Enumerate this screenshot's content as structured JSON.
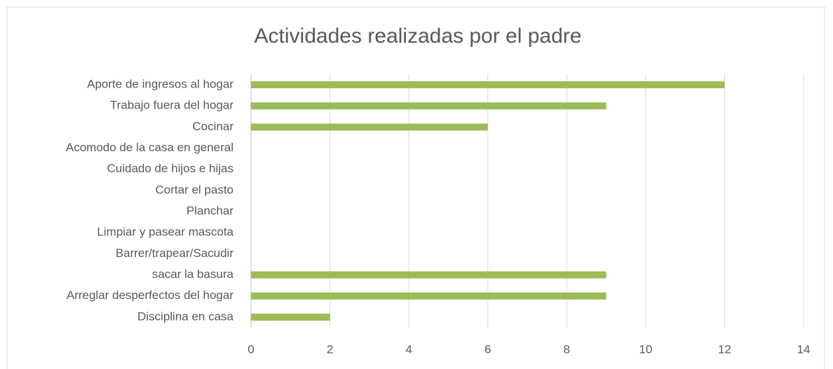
{
  "chart_data": {
    "type": "barh",
    "title": "Actividades realizadas por el padre",
    "categories": [
      "Aporte de ingresos al hogar",
      "Trabajo fuera del hogar",
      "Cocinar",
      "Acomodo de la casa en general",
      "Cuidado de hijos e hijas",
      "Cortar el pasto",
      "Planchar",
      "Limpiar y pasear mascota",
      "Barrer/trapear/Sacudir",
      "sacar la basura",
      "Arreglar desperfectos del hogar",
      "Disciplina en casa"
    ],
    "values": [
      12,
      9,
      6,
      0,
      0,
      0,
      0,
      0,
      0,
      9,
      9,
      2
    ],
    "color": "#9bbb59",
    "xlim": [
      0,
      14
    ],
    "xticks": [
      0,
      2,
      4,
      6,
      8,
      10,
      12,
      14
    ],
    "grid": true
  }
}
